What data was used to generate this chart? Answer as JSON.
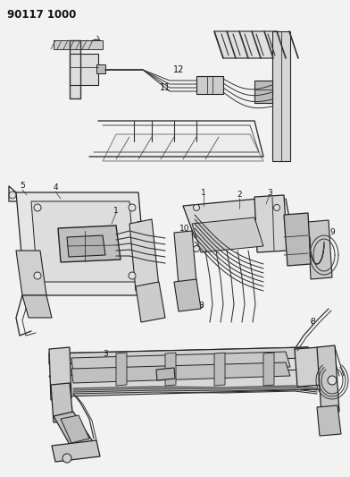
{
  "title_code": "90117 1000",
  "background_color": "#f2f2f2",
  "line_color": "#333333",
  "dark_color": "#222222",
  "label_color": "#111111",
  "fig_width": 3.92,
  "fig_height": 5.33,
  "dpi": 100
}
